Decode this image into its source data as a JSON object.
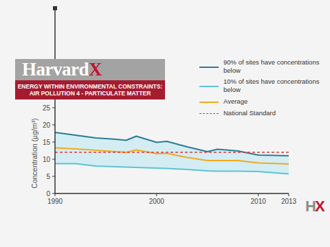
{
  "chart_data": {
    "type": "line",
    "title": "ENERGY WITHIN ENVIRONMENTAL CONSTRAINTS:",
    "subtitle": "AIR POLLUTION 4 - PARTICULATE MATTER",
    "ylabel": "Concentration (µg/m³)",
    "annotations": [
      {
        "text": "HarvardX"
      },
      {
        "text": "HX"
      }
    ],
    "x": [
      1990,
      1992,
      1994,
      1996,
      1997,
      1998,
      2000,
      2001,
      2003,
      2005,
      2006,
      2008,
      2010,
      2013
    ],
    "xlim": [
      1990,
      2013
    ],
    "xticks": [
      1990,
      2000,
      2010,
      2013
    ],
    "ylim": [
      0,
      54
    ],
    "yticks": [
      0,
      5,
      10,
      15,
      20,
      25
    ],
    "grid": false,
    "legend": "top-right",
    "series": [
      {
        "name": "90% of sites have concentrations below",
        "color": "#2b7b96",
        "values": [
          17.8,
          17.0,
          16.2,
          15.8,
          15.5,
          16.7,
          14.9,
          15.2,
          13.6,
          12.2,
          12.9,
          12.4,
          11.2,
          11.0
        ]
      },
      {
        "name": "10% of sites have concentrations below",
        "color": "#5cc3d3",
        "values": [
          8.7,
          8.7,
          8.0,
          7.8,
          7.7,
          7.6,
          7.4,
          7.3,
          7.0,
          6.6,
          6.5,
          6.5,
          6.4,
          5.7
        ]
      },
      {
        "name": "Average",
        "color": "#f5a81c",
        "values": [
          13.3,
          13.0,
          12.6,
          12.2,
          12.0,
          12.7,
          11.6,
          11.7,
          10.5,
          9.6,
          9.6,
          9.6,
          8.9,
          8.6
        ]
      },
      {
        "name": "National Standard",
        "color": "#d93a3a",
        "line_style": "dashed",
        "values": [
          12,
          12,
          12,
          12,
          12,
          12,
          12,
          12,
          12,
          12,
          12,
          12,
          12,
          12
        ]
      }
    ]
  }
}
